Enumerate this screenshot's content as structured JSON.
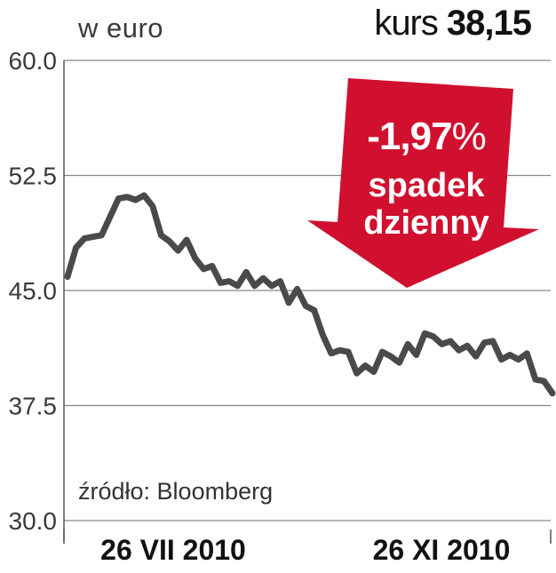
{
  "header": {
    "unit": "w euro",
    "price_word": "kurs",
    "price_value": "38,15"
  },
  "badge": {
    "change_number": "-1,97",
    "change_percent": "%",
    "line1": "spadek",
    "line2": "dzienny",
    "color": "#d0102e"
  },
  "source": "źródło: Bloomberg",
  "colors": {
    "line": "#4a4a4a",
    "grid": "#888888",
    "axis_text": "#3a3a3a"
  },
  "chart_data": {
    "type": "line",
    "title": "",
    "xlabel": "",
    "ylabel": "w euro",
    "ylim": [
      30.0,
      60.0
    ],
    "yticks": [
      "60.0",
      "52.5",
      "45.0",
      "37.5",
      "30.0"
    ],
    "ytick_values": [
      60.0,
      52.5,
      45.0,
      37.5,
      30.0
    ],
    "xtick_labels": [
      "26 VII 2010",
      "26 XI 2010"
    ],
    "grid": true,
    "series": [
      {
        "values": [
          45.9,
          47.8,
          48.4,
          48.5,
          48.6,
          49.8,
          51.0,
          51.1,
          50.9,
          51.2,
          50.5,
          48.6,
          48.2,
          47.6,
          48.3,
          47.1,
          46.4,
          46.6,
          45.5,
          45.6,
          45.3,
          46.2,
          45.3,
          45.8,
          45.3,
          45.6,
          44.2,
          45.1,
          44.0,
          43.7,
          42.1,
          40.9,
          41.1,
          41.0,
          39.6,
          40.1,
          39.7,
          41.0,
          40.7,
          40.3,
          41.5,
          40.8,
          42.2,
          42.0,
          41.5,
          41.7,
          41.1,
          41.4,
          40.7,
          41.6,
          41.7,
          40.5,
          40.8,
          40.5,
          40.9,
          39.2,
          39.1,
          38.3
        ]
      }
    ]
  }
}
